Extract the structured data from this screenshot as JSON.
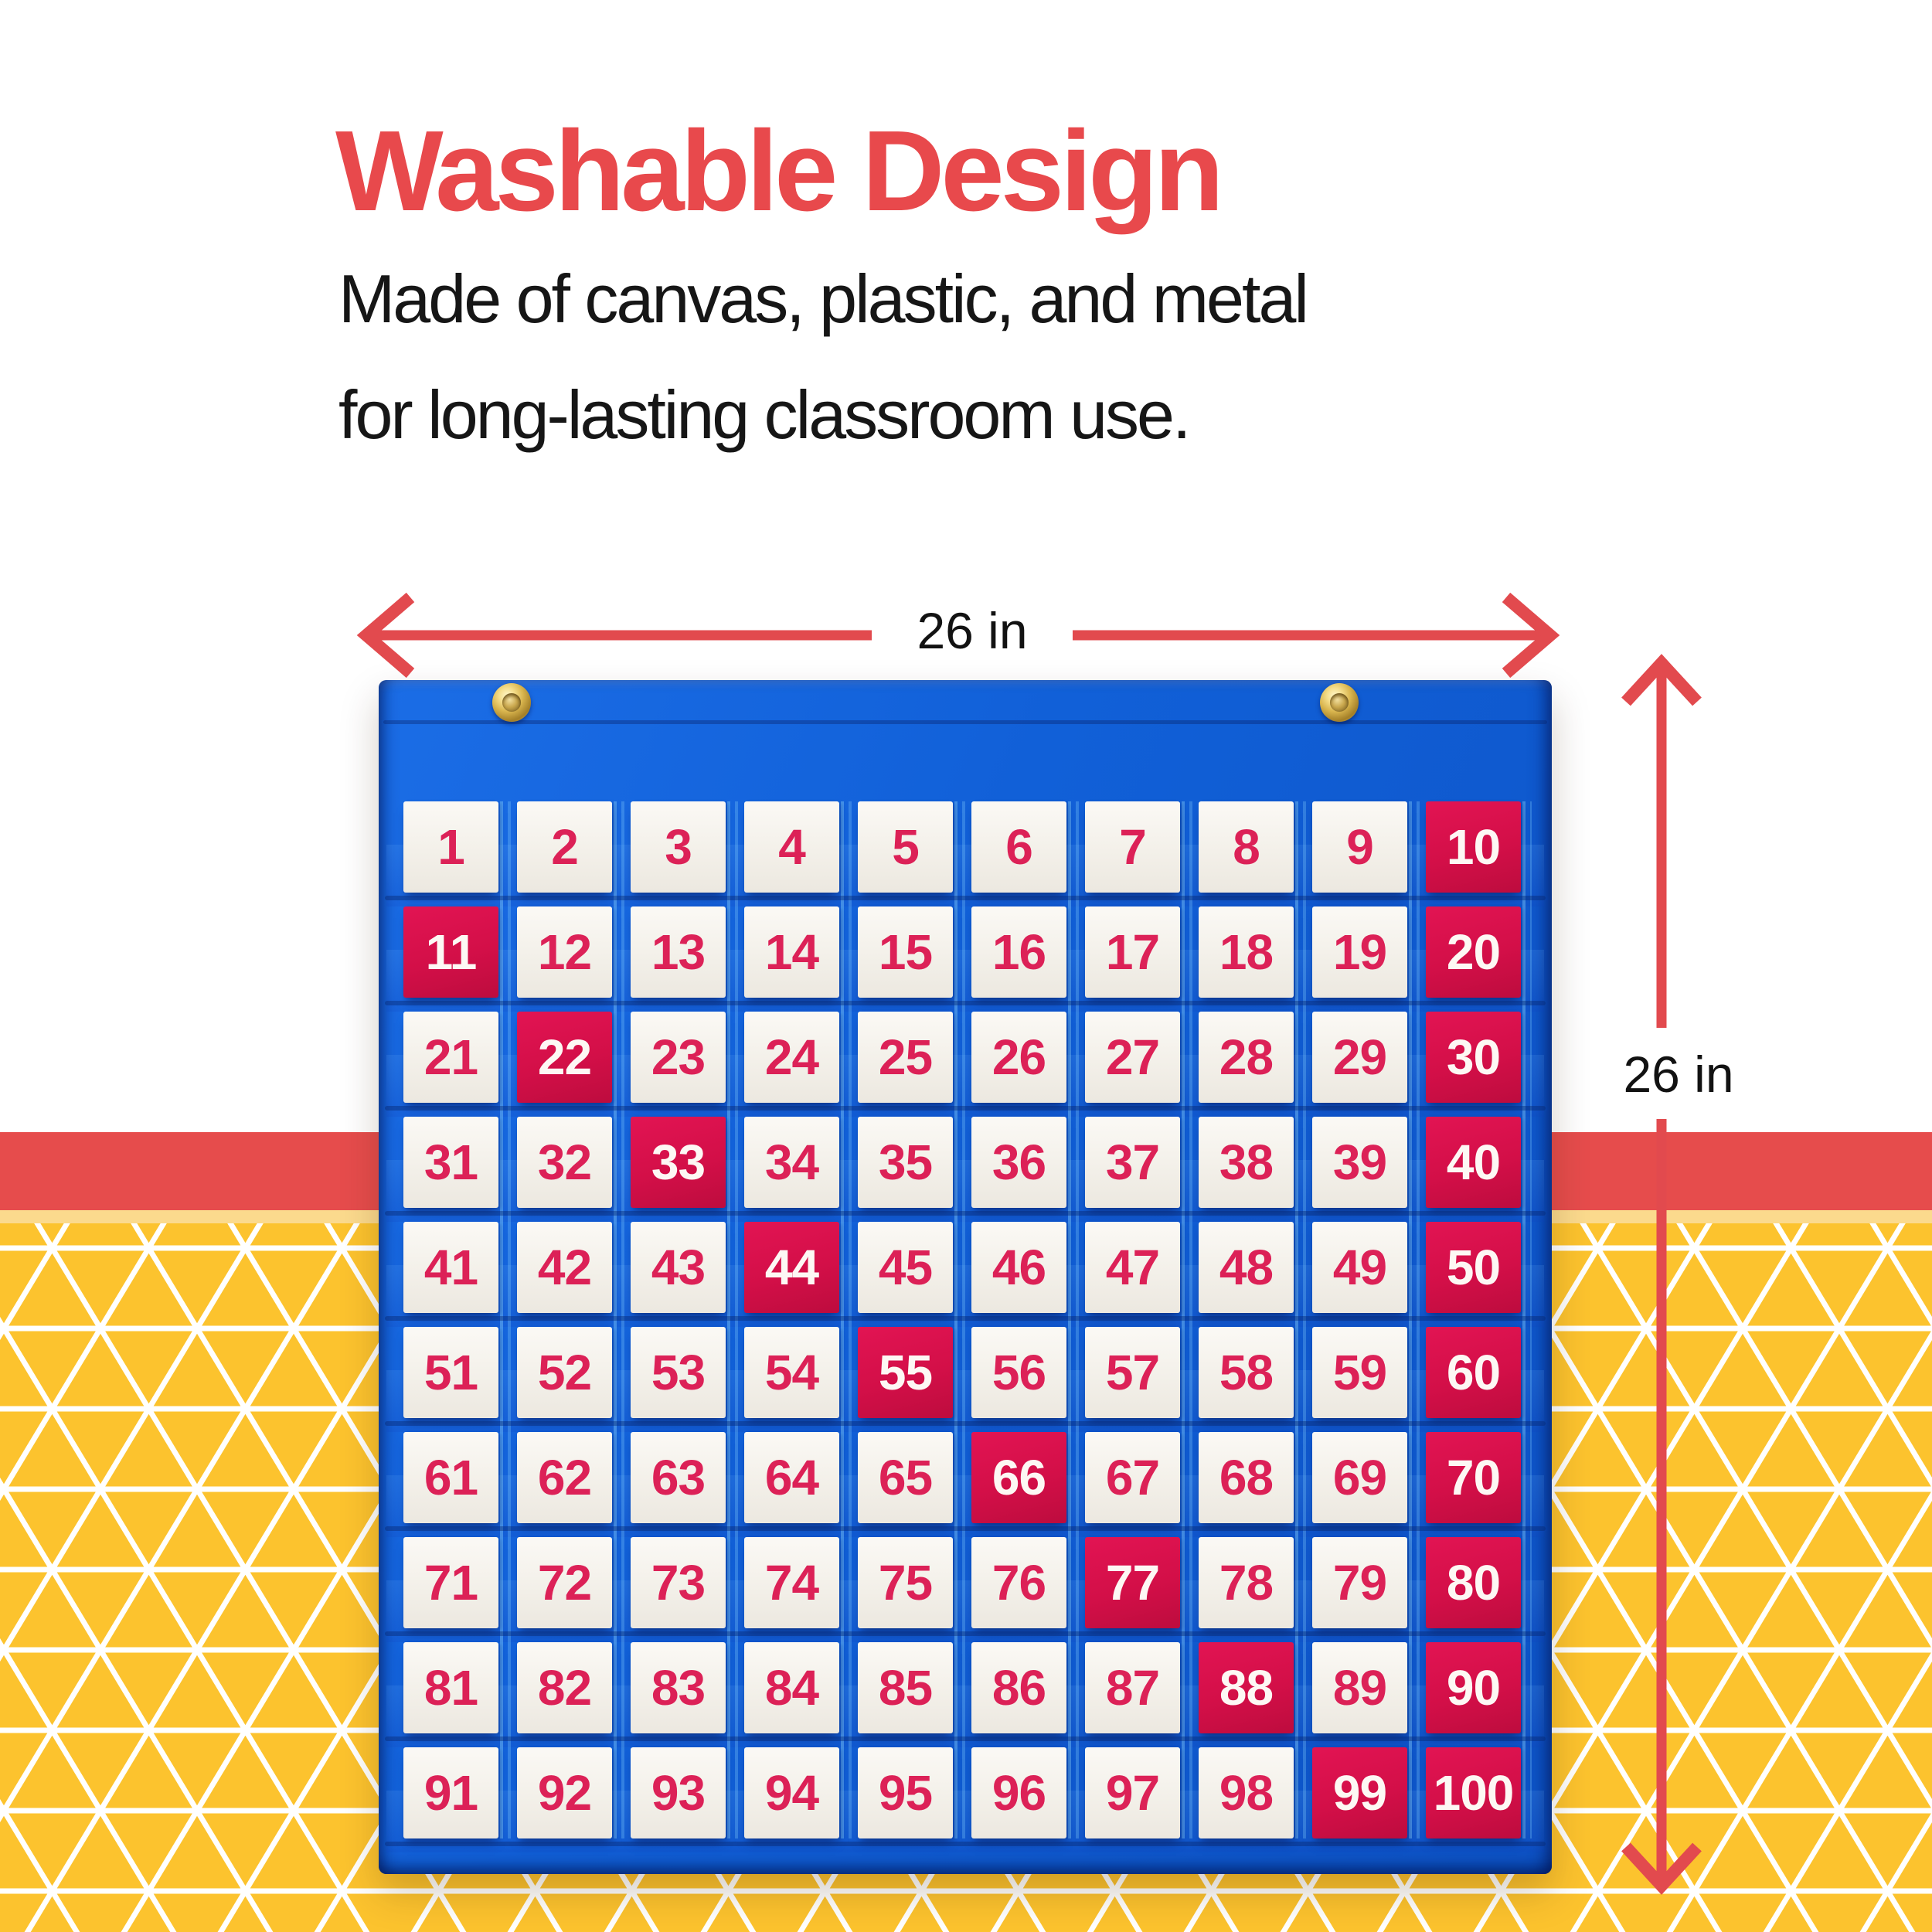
{
  "headline": {
    "title": "Washable Design",
    "subtitle_line1": "Made of canvas, plastic, and metal",
    "subtitle_line2": "for long-lasting classroom use."
  },
  "dimensions": {
    "width_label": "26 in",
    "height_label": "26 in"
  },
  "chart": {
    "cards": [
      1,
      2,
      3,
      4,
      5,
      6,
      7,
      8,
      9,
      10,
      11,
      12,
      13,
      14,
      15,
      16,
      17,
      18,
      19,
      20,
      21,
      22,
      23,
      24,
      25,
      26,
      27,
      28,
      29,
      30,
      31,
      32,
      33,
      34,
      35,
      36,
      37,
      38,
      39,
      40,
      41,
      42,
      43,
      44,
      45,
      46,
      47,
      48,
      49,
      50,
      51,
      52,
      53,
      54,
      55,
      56,
      57,
      58,
      59,
      60,
      61,
      62,
      63,
      64,
      65,
      66,
      67,
      68,
      69,
      70,
      71,
      72,
      73,
      74,
      75,
      76,
      77,
      78,
      79,
      80,
      81,
      82,
      83,
      84,
      85,
      86,
      87,
      88,
      89,
      90,
      91,
      92,
      93,
      94,
      95,
      96,
      97,
      98,
      99,
      100
    ],
    "red_cards": [
      10,
      11,
      20,
      22,
      30,
      33,
      40,
      44,
      50,
      55,
      60,
      66,
      70,
      77,
      80,
      88,
      90,
      99,
      100
    ]
  },
  "colors": {
    "accent_red": "#e8494c",
    "stripe_red": "#e64c4c",
    "background_yellow": "#fcc32e",
    "chart_blue": "#1160d8",
    "card_red": "#d30f48",
    "number_pink": "#dc2157"
  }
}
